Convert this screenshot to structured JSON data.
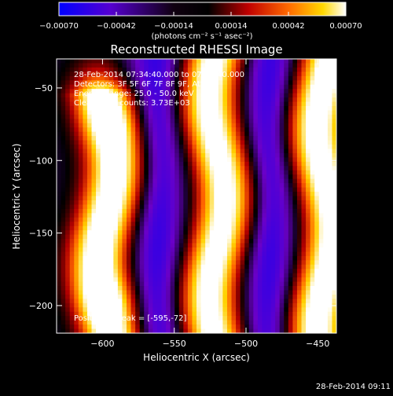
{
  "chart_data": {
    "type": "heatmap",
    "title": "Reconstructed RHESSI Image",
    "xlabel": "Heliocentric X (arcsec)",
    "ylabel": "Heliocentric Y (arcsec)",
    "xlim": [
      -632,
      -437
    ],
    "ylim": [
      -219,
      -30
    ],
    "xticks": [
      -600,
      -550,
      -500,
      -450
    ],
    "yticks": [
      -200,
      -150,
      -100,
      -50
    ],
    "xtick_labels": [
      "−600",
      "−550",
      "−500",
      "−450"
    ],
    "ytick_labels": [
      "−200",
      "−150",
      "−100",
      "−50"
    ],
    "colorbar": {
      "range": [
        -0.0007,
        0.0007
      ],
      "ticks": [
        -0.0007,
        -0.00042,
        -0.00014,
        0.00014,
        0.00042,
        0.0007
      ],
      "tick_labels": [
        "−0.00070",
        "−0.00042",
        "−0.00014",
        "0.00014",
        "0.00042",
        "0.00070"
      ],
      "unit_label": "(photons cm⁻² s⁻¹ asec⁻²)"
    },
    "annotations": [
      "28-Feb-2014 07:34:40.000  to 07:36:40.000",
      "Detectors: 3F 5F 6F 7F 8F 9F, Att 0",
      "Energy Range: 25.0 - 50.0 keV",
      "Clean     Total counts: 3.73E+03"
    ],
    "peak_label": "Position of Peak = [-595,-72]",
    "peak": [
      -595,
      -72
    ],
    "ridges": [
      {
        "x": -597,
        "y_min": -219,
        "y_max": -55,
        "strength": 0.9
      },
      {
        "x": -520,
        "y_min": -219,
        "y_max": -30,
        "strength": 0.82
      },
      {
        "x": -445,
        "y_min": -219,
        "y_max": -30,
        "strength": 0.85
      }
    ],
    "colormap": [
      "#0000ff",
      "#6a00c8",
      "#000000",
      "#b40000",
      "#ff6400",
      "#ffd200",
      "#ffffff"
    ]
  },
  "timestamp": "28-Feb-2014 09:11"
}
